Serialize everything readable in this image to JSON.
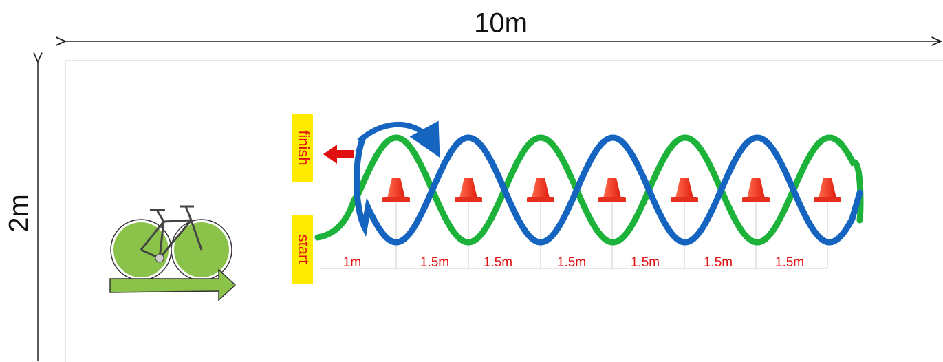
{
  "dimensions": {
    "width": "10m",
    "height": "2m"
  },
  "labels": {
    "finish": "finish",
    "start": "start"
  },
  "segments": [
    "1m",
    "1.5m",
    "1.5m",
    "1.5m",
    "1.5m",
    "1.5m",
    "1.5m"
  ]
}
